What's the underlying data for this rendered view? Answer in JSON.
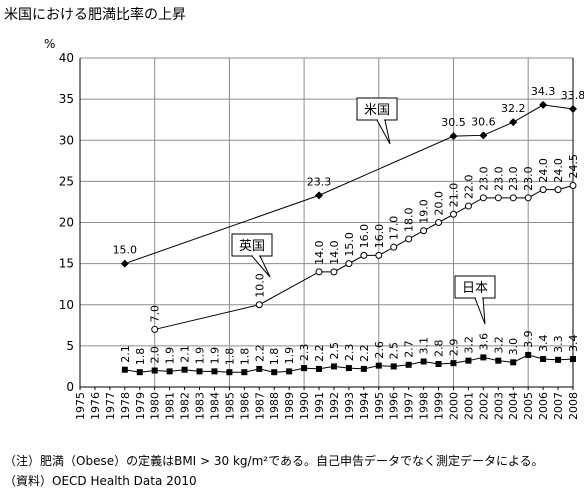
{
  "title": "米国における肥満比率の上昇",
  "notes": {
    "definition": "（注）肥満（Obese）の定義はBMI > 30 kg/m²である。自己申告データでなく測定データによる。",
    "source": "（資料）OECD Health Data 2010"
  },
  "chart_data": {
    "type": "line",
    "title": "",
    "ylabel": "%",
    "xlabel": "",
    "ylim": [
      0,
      40
    ],
    "yticks": [
      0,
      5,
      10,
      15,
      20,
      25,
      30,
      35,
      40
    ],
    "grid": true,
    "categories": [
      "1975",
      "1976",
      "1977",
      "1978",
      "1979",
      "1980",
      "1981",
      "1982",
      "1983",
      "1984",
      "1985",
      "1986",
      "1987",
      "1988",
      "1989",
      "1990",
      "1991",
      "1992",
      "1993",
      "1994",
      "1995",
      "1996",
      "1997",
      "1998",
      "1999",
      "2000",
      "2001",
      "2002",
      "2003",
      "2004",
      "2005",
      "2006",
      "2007",
      "2008"
    ],
    "series": [
      {
        "name": "米国",
        "marker": "diamond",
        "color": "#000000",
        "points": [
          {
            "x": "1978",
            "y": 15.0,
            "label": "15.0"
          },
          {
            "x": "1991",
            "y": 23.3,
            "label": "23.3"
          },
          {
            "x": "2000",
            "y": 30.5,
            "label": "30.5"
          },
          {
            "x": "2002",
            "y": 30.6,
            "label": "30.6"
          },
          {
            "x": "2004",
            "y": 32.2,
            "label": "32.2"
          },
          {
            "x": "2006",
            "y": 34.3,
            "label": "34.3"
          },
          {
            "x": "2008",
            "y": 33.8,
            "label": "33.8"
          }
        ]
      },
      {
        "name": "英国",
        "marker": "circle-open",
        "color": "#000000",
        "points": [
          {
            "x": "1980",
            "y": 7.0,
            "label": "7.0"
          },
          {
            "x": "1987",
            "y": 10.0,
            "label": "10.0"
          },
          {
            "x": "1991",
            "y": 14.0,
            "label": "14.0"
          },
          {
            "x": "1992",
            "y": 14.0,
            "label": "14.0"
          },
          {
            "x": "1993",
            "y": 15.0,
            "label": "15.0"
          },
          {
            "x": "1994",
            "y": 16.0,
            "label": "16.0"
          },
          {
            "x": "1995",
            "y": 16.0,
            "label": "16.0"
          },
          {
            "x": "1996",
            "y": 17.0,
            "label": "17.0"
          },
          {
            "x": "1997",
            "y": 18.0,
            "label": "18.0"
          },
          {
            "x": "1998",
            "y": 19.0,
            "label": "19.0"
          },
          {
            "x": "1999",
            "y": 20.0,
            "label": "20.0"
          },
          {
            "x": "2000",
            "y": 21.0,
            "label": "21.0"
          },
          {
            "x": "2001",
            "y": 22.0,
            "label": "22.0"
          },
          {
            "x": "2002",
            "y": 23.0,
            "label": "23.0"
          },
          {
            "x": "2003",
            "y": 23.0,
            "label": "23.0"
          },
          {
            "x": "2004",
            "y": 23.0,
            "label": "23.0"
          },
          {
            "x": "2005",
            "y": 23.0,
            "label": "23.0"
          },
          {
            "x": "2006",
            "y": 24.0,
            "label": "24.0"
          },
          {
            "x": "2007",
            "y": 24.0,
            "label": "24.0"
          },
          {
            "x": "2008",
            "y": 24.5,
            "label": "24.5"
          }
        ]
      },
      {
        "name": "日本",
        "marker": "square",
        "color": "#000000",
        "points": [
          {
            "x": "1978",
            "y": 2.1,
            "label": "2.1"
          },
          {
            "x": "1979",
            "y": 1.8,
            "label": "1.8"
          },
          {
            "x": "1980",
            "y": 2.0,
            "label": "2.0"
          },
          {
            "x": "1981",
            "y": 1.9,
            "label": "1.9"
          },
          {
            "x": "1982",
            "y": 2.1,
            "label": "2.1"
          },
          {
            "x": "1983",
            "y": 1.9,
            "label": "1.9"
          },
          {
            "x": "1984",
            "y": 1.9,
            "label": "1.9"
          },
          {
            "x": "1985",
            "y": 1.8,
            "label": "1.8"
          },
          {
            "x": "1986",
            "y": 1.8,
            "label": "1.8"
          },
          {
            "x": "1987",
            "y": 2.2,
            "label": "2.2"
          },
          {
            "x": "1988",
            "y": 1.8,
            "label": "1.8"
          },
          {
            "x": "1989",
            "y": 1.9,
            "label": "1.9"
          },
          {
            "x": "1990",
            "y": 2.3,
            "label": "2.3"
          },
          {
            "x": "1991",
            "y": 2.2,
            "label": "2.2"
          },
          {
            "x": "1992",
            "y": 2.5,
            "label": "2.5"
          },
          {
            "x": "1993",
            "y": 2.3,
            "label": "2.3"
          },
          {
            "x": "1994",
            "y": 2.2,
            "label": "2.2"
          },
          {
            "x": "1995",
            "y": 2.6,
            "label": "2.6"
          },
          {
            "x": "1996",
            "y": 2.5,
            "label": "2.5"
          },
          {
            "x": "1997",
            "y": 2.7,
            "label": "2.7"
          },
          {
            "x": "1998",
            "y": 3.1,
            "label": "3.1"
          },
          {
            "x": "1999",
            "y": 2.8,
            "label": "2.8"
          },
          {
            "x": "2000",
            "y": 2.9,
            "label": "2.9"
          },
          {
            "x": "2001",
            "y": 3.2,
            "label": "3.2"
          },
          {
            "x": "2002",
            "y": 3.6,
            "label": "3.6"
          },
          {
            "x": "2003",
            "y": 3.2,
            "label": "3.2"
          },
          {
            "x": "2004",
            "y": 3.0,
            "label": "3.0"
          },
          {
            "x": "2005",
            "y": 3.9,
            "label": "3.9"
          },
          {
            "x": "2006",
            "y": 3.4,
            "label": "3.4"
          },
          {
            "x": "2007",
            "y": 3.3,
            "label": "3.3"
          },
          {
            "x": "2008",
            "y": 3.4,
            "label": "3.4"
          }
        ]
      }
    ]
  }
}
